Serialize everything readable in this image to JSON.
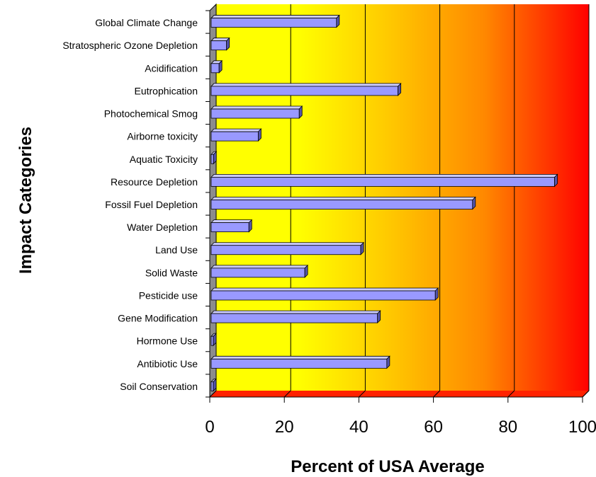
{
  "chart_data": {
    "type": "bar",
    "orientation": "horizontal",
    "categories": [
      "Global Climate Change",
      "Stratospheric Ozone Depletion",
      "Acidification",
      "Eutrophication",
      "Photochemical Smog",
      "Airborne toxicity",
      "Aquatic Toxicity",
      "Resource Depletion",
      "Fossil Fuel Depletion",
      "Water Depletion",
      "Land Use",
      "Solid Waste",
      "Pesticide use",
      "Gene Modification",
      "Hormone Use",
      "Antibiotic Use",
      "Soil Conservation"
    ],
    "values": [
      34,
      4.5,
      2.5,
      50.5,
      24,
      13,
      1,
      92.5,
      70.5,
      10.5,
      40.5,
      25.5,
      60.5,
      45,
      0.8,
      47.5,
      0.8
    ],
    "xlabel": "Percent of USA Average",
    "ylabel": "Impact Categories",
    "xlim": [
      0,
      100
    ],
    "xticks": [
      "0",
      "20",
      "40",
      "60",
      "80",
      "100"
    ],
    "grid": true,
    "bar_color": "#9999ff",
    "background_gradient": [
      "#ffff00",
      "#ffcc00",
      "#ff9900",
      "#ff0000"
    ]
  }
}
